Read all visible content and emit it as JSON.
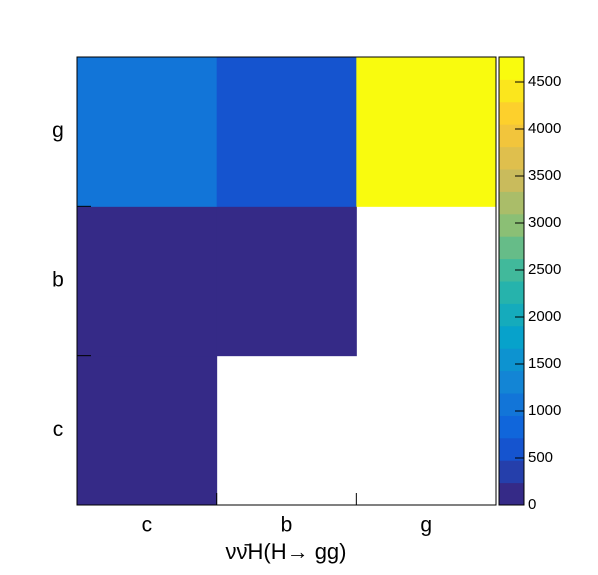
{
  "chart_data": {
    "type": "heatmap",
    "x_label": "νν̄H(H→ gg)",
    "x_categories": [
      "c",
      "b",
      "g"
    ],
    "y_categories": [
      "c",
      "b",
      "g"
    ],
    "values": [
      [
        100,
        null,
        null
      ],
      [
        100,
        100,
        null
      ],
      [
        1100,
        600,
        4760
      ]
    ],
    "zlim": [
      0,
      4766
    ],
    "zticks": [
      0,
      500,
      1000,
      1500,
      2000,
      2500,
      3000,
      3500,
      4000,
      4500
    ],
    "palette": [
      "#352a87",
      "#0f5cdd",
      "#1481d6",
      "#06a4ca",
      "#2eb7a4",
      "#87bf77",
      "#d1bb59",
      "#fec832",
      "#f9fb0e"
    ]
  }
}
